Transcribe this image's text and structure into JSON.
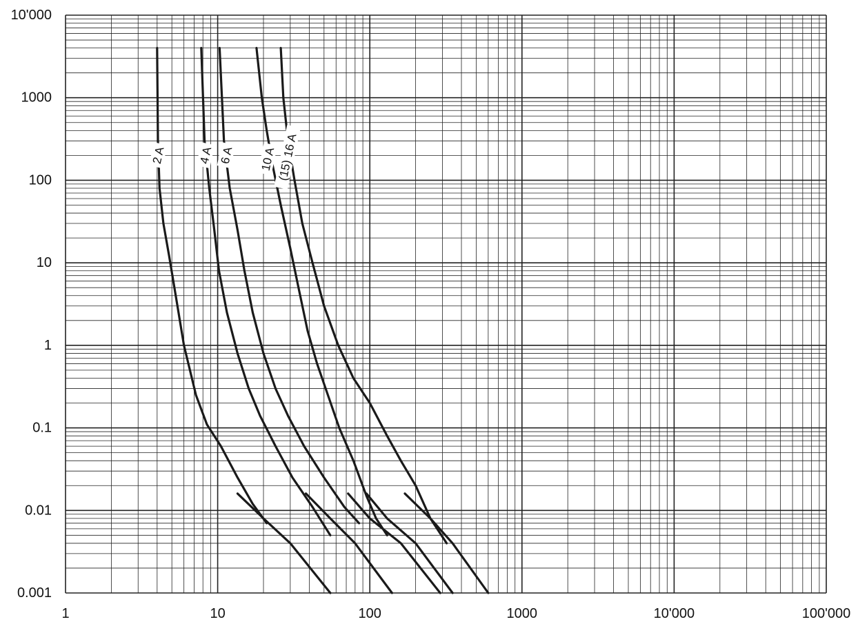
{
  "chart_data": {
    "type": "line",
    "title": "",
    "xlabel": "",
    "ylabel": "",
    "x_scale": "log",
    "y_scale": "log",
    "xlim": [
      1,
      100000
    ],
    "ylim": [
      0.001,
      10000
    ],
    "x_tick_labels": [
      "1",
      "10",
      "100",
      "1000",
      "10'000",
      "100'000"
    ],
    "y_tick_labels": [
      "0.001",
      "0.01",
      "0.1",
      "1",
      "10",
      "100",
      "1000",
      "10'000"
    ],
    "grid": true,
    "series": [
      {
        "name": "2 A",
        "upper": [
          [
            4.0,
            4000
          ],
          [
            4.05,
            300
          ],
          [
            4.15,
            80
          ],
          [
            4.4,
            30
          ],
          [
            4.8,
            12
          ],
          [
            5.3,
            4
          ],
          [
            6.0,
            1
          ],
          [
            7.2,
            0.25
          ],
          [
            8.5,
            0.11
          ],
          [
            10.5,
            0.06
          ],
          [
            13.5,
            0.025
          ],
          [
            17,
            0.012
          ],
          [
            21,
            0.007
          ]
        ],
        "lower": [
          [
            13.5,
            0.016
          ],
          [
            20,
            0.008
          ],
          [
            30,
            0.004
          ],
          [
            55,
            0.001
          ]
        ]
      },
      {
        "name": "4 A",
        "upper": [
          [
            7.8,
            4000
          ],
          [
            8.2,
            300
          ],
          [
            8.8,
            80
          ],
          [
            9.5,
            25
          ],
          [
            10.2,
            8
          ],
          [
            11.5,
            2.5
          ],
          [
            13.5,
            0.8
          ],
          [
            16,
            0.3
          ],
          [
            19,
            0.14
          ],
          [
            24,
            0.06
          ],
          [
            31,
            0.025
          ],
          [
            42,
            0.011
          ],
          [
            55,
            0.005
          ]
        ],
        "lower": [
          [
            38,
            0.016
          ],
          [
            55,
            0.008
          ],
          [
            80,
            0.004
          ],
          [
            140,
            0.001
          ]
        ]
      },
      {
        "name": "6 A",
        "upper": [
          [
            10.3,
            4000
          ],
          [
            11,
            300
          ],
          [
            12,
            80
          ],
          [
            13.5,
            25
          ],
          [
            15,
            8
          ],
          [
            17,
            2.5
          ],
          [
            20,
            0.8
          ],
          [
            24,
            0.3
          ],
          [
            29,
            0.14
          ],
          [
            37,
            0.06
          ],
          [
            50,
            0.025
          ],
          [
            68,
            0.011
          ],
          [
            85,
            0.007
          ]
        ],
        "lower": [
          [
            72,
            0.016
          ],
          [
            100,
            0.008
          ],
          [
            160,
            0.004
          ],
          [
            290,
            0.001
          ]
        ]
      },
      {
        "name": "10 A",
        "upper": [
          [
            18,
            4000
          ],
          [
            19.5,
            1000
          ],
          [
            21,
            400
          ],
          [
            23,
            150
          ],
          [
            26,
            50
          ],
          [
            30,
            15
          ],
          [
            34,
            5
          ],
          [
            39,
            1.5
          ],
          [
            45,
            0.6
          ],
          [
            53,
            0.25
          ],
          [
            63,
            0.1
          ],
          [
            78,
            0.04
          ],
          [
            95,
            0.015
          ],
          [
            110,
            0.008
          ],
          [
            130,
            0.005
          ]
        ],
        "lower": [
          [
            95,
            0.016
          ],
          [
            130,
            0.008
          ],
          [
            200,
            0.004
          ],
          [
            350,
            0.001
          ]
        ]
      },
      {
        "name": "(15) 16 A",
        "upper": [
          [
            26,
            4000
          ],
          [
            27,
            1000
          ],
          [
            29,
            300
          ],
          [
            32,
            100
          ],
          [
            36,
            30
          ],
          [
            42,
            10
          ],
          [
            50,
            3
          ],
          [
            62,
            1
          ],
          [
            78,
            0.4
          ],
          [
            100,
            0.2
          ],
          [
            130,
            0.08
          ],
          [
            160,
            0.04
          ],
          [
            200,
            0.02
          ],
          [
            250,
            0.008
          ],
          [
            320,
            0.004
          ]
        ],
        "lower": [
          [
            170,
            0.016
          ],
          [
            250,
            0.008
          ],
          [
            350,
            0.004
          ],
          [
            600,
            0.001
          ]
        ]
      }
    ]
  }
}
